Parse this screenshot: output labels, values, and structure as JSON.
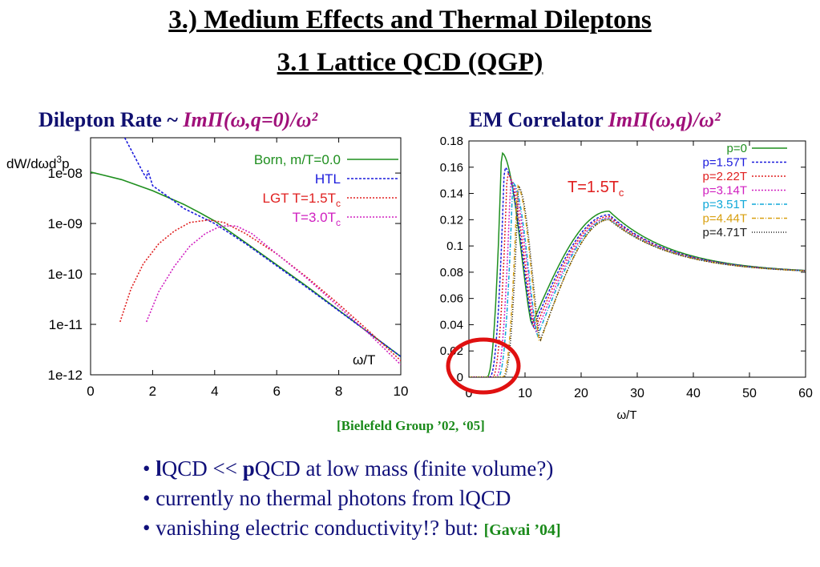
{
  "title": "3.) Medium Effects and Thermal Dileptons",
  "subtitle": "3.1 Lattice QCD  (QGP)",
  "panel_left_title": {
    "prefix": "Dilepton Rate ~ ",
    "math": "ImΠ(ω,q=0)/ω²"
  },
  "panel_right_title": {
    "prefix": "EM Correlator ",
    "math": "ImΠ(ω,q)/ω²"
  },
  "reference": "[Bielefeld Group ’02, ‘05]",
  "bullets": [
    {
      "b1": "l",
      "t1": "QCD << ",
      "b2": "p",
      "t2": "QCD  at low mass (finite volume?)"
    },
    {
      "t1": "currently no thermal photons from lQCD"
    },
    {
      "t1": "vanishing electric conductivity!?  but: ",
      "ref": "[Gavai ’04]"
    }
  ],
  "chart_data": [
    {
      "type": "line",
      "ylabel": "dW/dωd³p",
      "xlabel": "ω/T",
      "xlim": [
        0,
        10
      ],
      "ylim_log10": [
        -12,
        -7.3
      ],
      "y_scale": "log",
      "xticks": [
        "0",
        "2",
        "4",
        "6",
        "8",
        "10"
      ],
      "yticks": [
        "1e-08",
        "1e-09",
        "1e-10",
        "1e-11",
        "1e-12"
      ],
      "legend_position": "top-right",
      "series": [
        {
          "name": "Born, m/T=0.0",
          "color": "#1f8f1f",
          "dash": "",
          "x": [
            0,
            1,
            2,
            3,
            3.5,
            4,
            5,
            6,
            7,
            8,
            9,
            10
          ],
          "log10y": [
            -7.98,
            -8.13,
            -8.35,
            -8.62,
            -8.78,
            -8.95,
            -9.38,
            -9.82,
            -10.26,
            -10.72,
            -11.18,
            -11.64
          ]
        },
        {
          "name": "HTL",
          "color": "#1a1adc",
          "dash": "3,2",
          "x": [
            1.1,
            1.4,
            1.7,
            1.8,
            1.85,
            2,
            2.5,
            3,
            3.5,
            4,
            5,
            6,
            7,
            8,
            9,
            10
          ],
          "log10y": [
            -7.3,
            -7.65,
            -8.0,
            -8.1,
            -7.95,
            -8.25,
            -8.47,
            -8.7,
            -8.85,
            -9.0,
            -9.4,
            -9.84,
            -10.28,
            -10.73,
            -11.18,
            -11.64
          ]
        },
        {
          "name": "LGT T=1.5T",
          "subscript": "c",
          "color": "#e02020",
          "dash": "2,2",
          "x": [
            0.95,
            1.3,
            1.7,
            2.2,
            2.7,
            3.2,
            3.8,
            4.3,
            5,
            6,
            7,
            8,
            9,
            10
          ],
          "log10y": [
            -10.95,
            -10.3,
            -9.8,
            -9.4,
            -9.15,
            -8.98,
            -8.93,
            -8.98,
            -9.2,
            -9.6,
            -10.08,
            -10.6,
            -11.15,
            -11.72
          ]
        },
        {
          "name": "T=3.0T",
          "subscript": "c",
          "color": "#d020c0",
          "dash": "2,2",
          "x": [
            1.8,
            2.2,
            2.7,
            3.2,
            3.7,
            4.2,
            4.7,
            5.2,
            6,
            7,
            8,
            9,
            10
          ],
          "log10y": [
            -10.95,
            -10.35,
            -9.85,
            -9.45,
            -9.2,
            -9.05,
            -9.05,
            -9.2,
            -9.6,
            -10.1,
            -10.65,
            -11.2,
            -11.8
          ]
        }
      ]
    },
    {
      "type": "line",
      "xlabel": "ω/T",
      "xlim": [
        0,
        60
      ],
      "ylim": [
        0,
        0.18
      ],
      "xticks": [
        "0",
        "10",
        "20",
        "30",
        "40",
        "50",
        "60"
      ],
      "yticks": [
        "0.18",
        "0.16",
        "0.14",
        "0.12",
        "0.1",
        "0.08",
        "0.06",
        "0.04",
        "0.02",
        "0"
      ],
      "annotation": {
        "text": "T=1.5T",
        "subscript": "c"
      },
      "legend_position": "top-right",
      "series": [
        {
          "name": "p=0",
          "color": "#1f8f1f",
          "dash": "",
          "shift": 0,
          "peak": 0.171,
          "dip": 0.04
        },
        {
          "name": "p=1.57T",
          "color": "#1a1adc",
          "dash": "3,2",
          "shift": 0.5,
          "peak": 0.16,
          "dip": 0.038
        },
        {
          "name": "p=2.22T",
          "color": "#e02020",
          "dash": "2,2",
          "shift": 1.0,
          "peak": 0.155,
          "dip": 0.036
        },
        {
          "name": "p=3.14T",
          "color": "#d020c0",
          "dash": "2,2",
          "shift": 1.6,
          "peak": 0.15,
          "dip": 0.034
        },
        {
          "name": "p=3.51T",
          "color": "#10a8d8",
          "dash": "5,2,1,2",
          "shift": 2.0,
          "peak": 0.148,
          "dip": 0.031
        },
        {
          "name": "p=4.44T",
          "color": "#d8a010",
          "dash": "5,2,1,2",
          "shift": 2.8,
          "peak": 0.146,
          "dip": 0.026
        },
        {
          "name": "p=4.71T",
          "color": "#202020",
          "dash": "1,2",
          "shift": 3.0,
          "peak": 0.145,
          "dip": 0.028
        }
      ]
    }
  ],
  "highlight_color": "#e01010"
}
